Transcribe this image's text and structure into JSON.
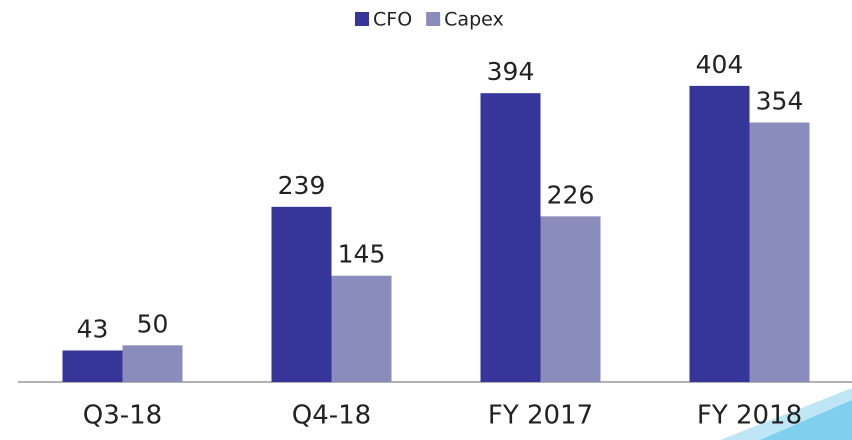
{
  "chart_data": {
    "type": "bar",
    "categories": [
      "Q3-18",
      "Q4-18",
      "FY 2017",
      "FY 2018"
    ],
    "series": [
      {
        "name": "CFO",
        "color": "#35359a",
        "values": [
          43,
          239,
          394,
          404
        ]
      },
      {
        "name": "Capex",
        "color": "#8a8cbb",
        "values": [
          50,
          145,
          226,
          354
        ]
      }
    ],
    "legend": "top"
  }
}
